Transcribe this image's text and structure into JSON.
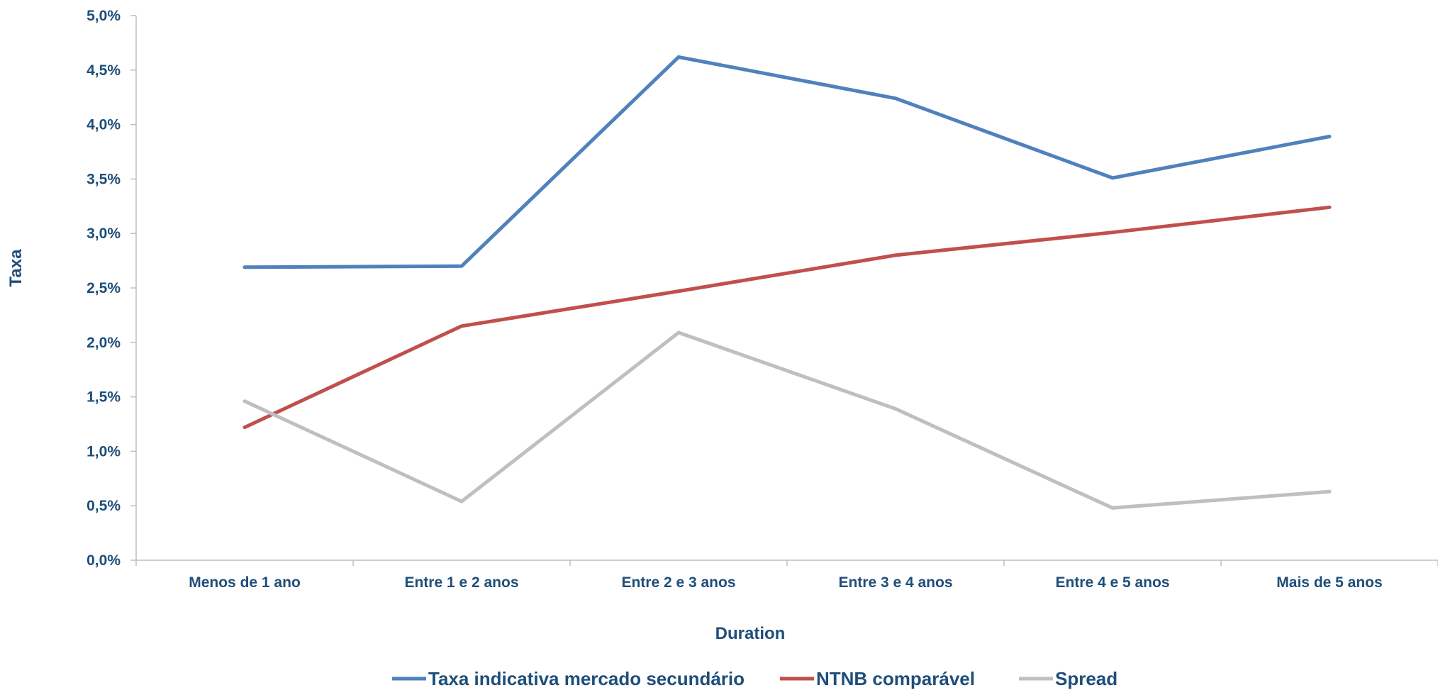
{
  "chart_data": {
    "type": "line",
    "title": "",
    "xlabel": "Duration",
    "ylabel": "Taxa",
    "ylim": [
      0,
      5
    ],
    "grid": false,
    "legend_position": "bottom",
    "categories": [
      "Menos de 1 ano",
      "Entre 1 e 2 anos",
      "Entre 2 e 3 anos",
      "Entre 3 e 4 anos",
      "Entre 4 e 5 anos",
      "Mais de 5 anos"
    ],
    "y_ticks": [
      {
        "value": 0,
        "label": "0,0%"
      },
      {
        "value": 0.5,
        "label": "0,5%"
      },
      {
        "value": 1,
        "label": "1,0%"
      },
      {
        "value": 1.5,
        "label": "1,5%"
      },
      {
        "value": 2,
        "label": "2,0%"
      },
      {
        "value": 2.5,
        "label": "2,5%"
      },
      {
        "value": 3,
        "label": "3,0%"
      },
      {
        "value": 3.5,
        "label": "3,5%"
      },
      {
        "value": 4,
        "label": "4,0%"
      },
      {
        "value": 4.5,
        "label": "4,5%"
      },
      {
        "value": 5,
        "label": "5,0%"
      }
    ],
    "series": [
      {
        "name": "Taxa indicativa mercado secundário",
        "color": "#4f81bd",
        "values": [
          2.69,
          2.7,
          4.62,
          4.24,
          3.51,
          3.89
        ]
      },
      {
        "name": "NTNB comparável",
        "color": "#c0504d",
        "values": [
          1.22,
          2.15,
          2.47,
          2.8,
          3.01,
          3.24
        ]
      },
      {
        "name": "Spread",
        "color": "#bfbfbf",
        "values": [
          1.46,
          0.54,
          2.09,
          1.39,
          0.48,
          0.63
        ]
      }
    ]
  }
}
